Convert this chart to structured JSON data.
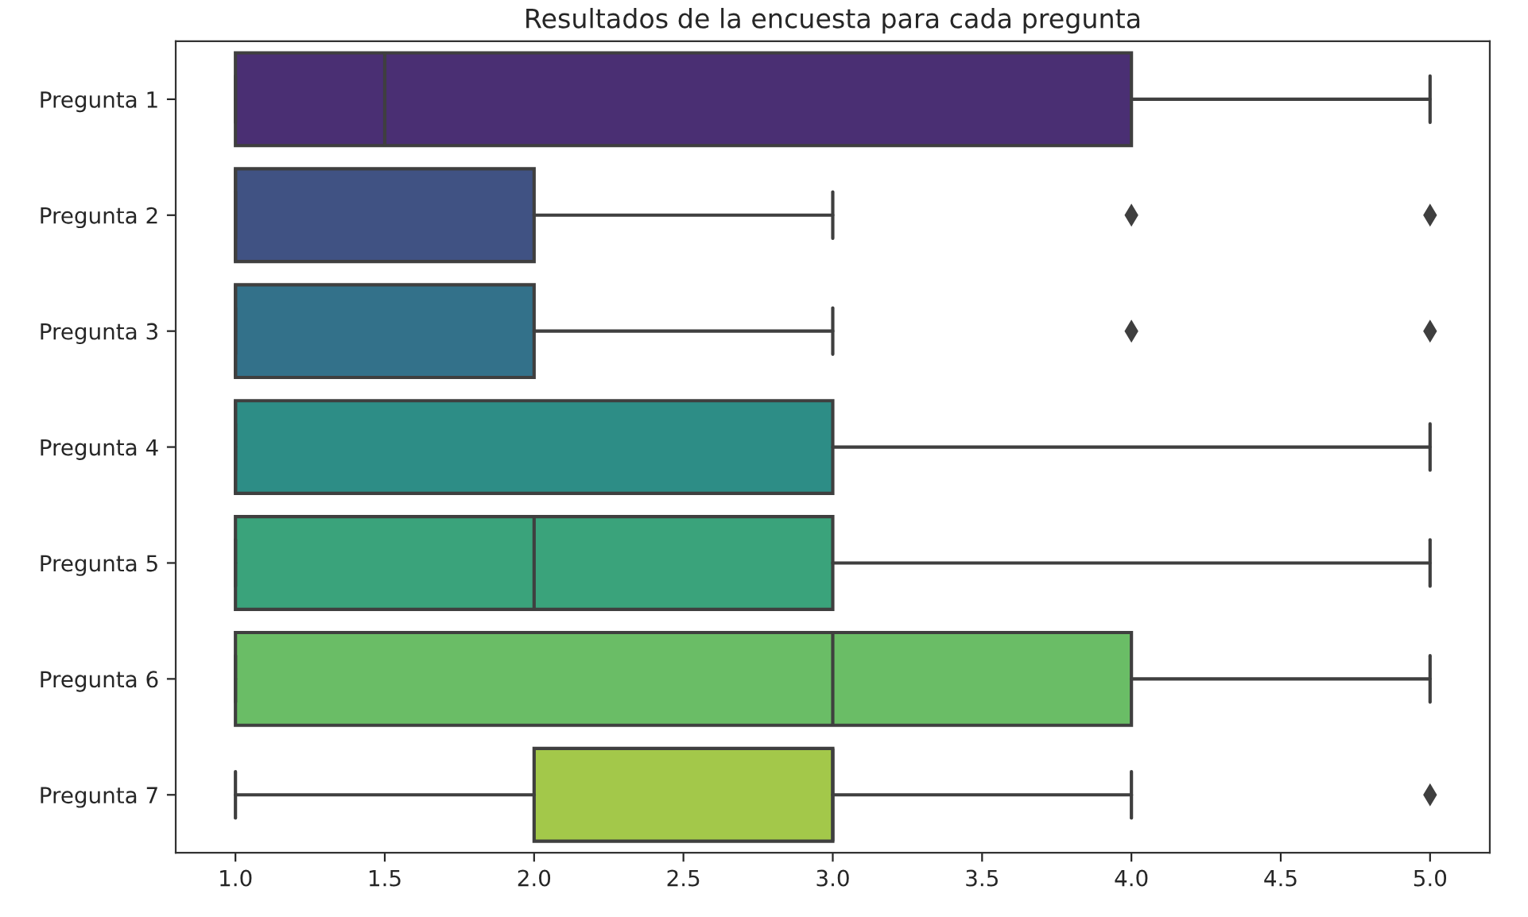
{
  "chart_data": {
    "type": "box",
    "orientation": "horizontal",
    "title": "Resultados de la encuesta para cada pregunta",
    "categories": [
      "Pregunta 1",
      "Pregunta 2",
      "Pregunta 3",
      "Pregunta 4",
      "Pregunta 5",
      "Pregunta 6",
      "Pregunta 7"
    ],
    "boxes": [
      {
        "low": 1,
        "q1": 1,
        "median": 1.5,
        "q3": 4,
        "high": 5
      },
      {
        "low": 1,
        "q1": 1,
        "median": 1,
        "q3": 2,
        "high": 3,
        "outliers": [
          4,
          5
        ]
      },
      {
        "low": 1,
        "q1": 1,
        "median": 1,
        "q3": 2,
        "high": 3,
        "outliers": [
          4,
          5
        ]
      },
      {
        "low": 1,
        "q1": 1,
        "median": 1,
        "q3": 3,
        "high": 5
      },
      {
        "low": 1,
        "q1": 1,
        "median": 2,
        "q3": 3,
        "high": 5
      },
      {
        "low": 1,
        "q1": 1,
        "median": 3,
        "q3": 4,
        "high": 5
      },
      {
        "low": 1,
        "q1": 2,
        "median": 3,
        "q3": 3,
        "high": 4,
        "outliers": [
          5
        ]
      }
    ],
    "colors": [
      "#4a2f73",
      "#405283",
      "#33718a",
      "#2d8d86",
      "#3aa37b",
      "#6abd66",
      "#a3c84a"
    ],
    "xlim": [
      0.8,
      5.2
    ],
    "xticks": [
      {
        "value": 1,
        "label": "1.0"
      },
      {
        "value": 1.5,
        "label": "1.5"
      },
      {
        "value": 2,
        "label": "2.0"
      },
      {
        "value": 2.5,
        "label": "2.5"
      },
      {
        "value": 3,
        "label": "3.0"
      },
      {
        "value": 3.5,
        "label": "3.5"
      },
      {
        "value": 4,
        "label": "4.0"
      },
      {
        "value": 4.5,
        "label": "4.5"
      },
      {
        "value": 5,
        "label": "5.0"
      }
    ],
    "marker": "diamond",
    "grid": false
  }
}
